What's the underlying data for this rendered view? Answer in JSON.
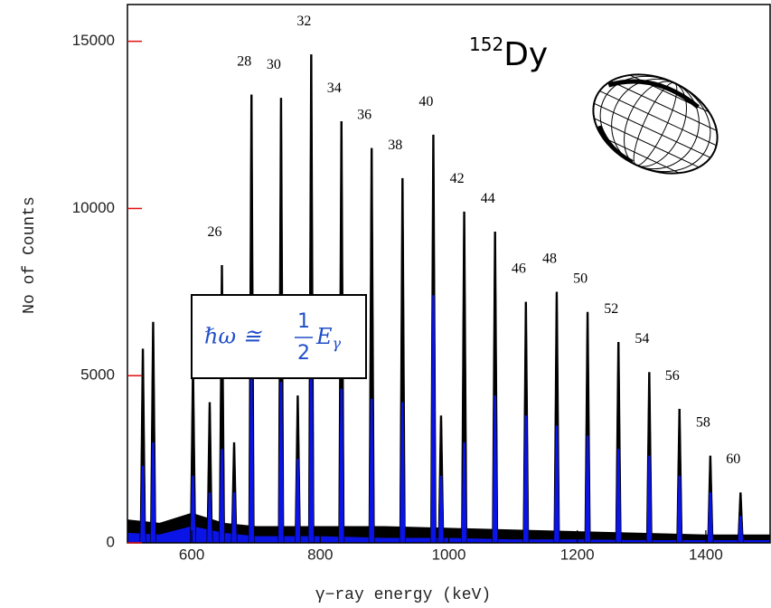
{
  "chart_data": {
    "type": "spectrum",
    "xlabel": "γ−ray energy (keV)",
    "ylabel": "No of Counts",
    "nucleus": {
      "mass": "152",
      "symbol": "Dy"
    },
    "formula": {
      "lhs": "ℏω ≅",
      "numerator": "1",
      "denominator": "2",
      "symbol": "E",
      "subscript": "γ"
    },
    "xlim": [
      500,
      1500
    ],
    "ylim": [
      0,
      16100
    ],
    "xticks": [
      600,
      800,
      1000,
      1200,
      1400
    ],
    "yticks": [
      0,
      5000,
      10000,
      15000
    ],
    "peaks": {
      "x": [
        524,
        540,
        602,
        628,
        647,
        666,
        693,
        739,
        765,
        786,
        833,
        880,
        928,
        976,
        988,
        1024,
        1072,
        1120,
        1168,
        1216,
        1264,
        1312,
        1359,
        1407,
        1454
      ],
      "labels": [
        null,
        null,
        null,
        null,
        "26",
        null,
        "28",
        "30",
        null,
        "32",
        "34",
        "36",
        "38",
        "40",
        null,
        "42",
        "44",
        "46",
        "48",
        "50",
        "52",
        "54",
        "56",
        "58",
        "60"
      ],
      "series": [
        {
          "color": "#000000",
          "values": [
            5800,
            6600,
            5300,
            4200,
            8300,
            3000,
            13400,
            13300,
            4400,
            14600,
            12600,
            11800,
            10900,
            12200,
            3800,
            9900,
            9300,
            7200,
            7500,
            6900,
            6000,
            5100,
            4000,
            2600,
            1500
          ]
        },
        {
          "color": "#0a14e6",
          "values": [
            2300,
            3000,
            2000,
            1500,
            2800,
            1500,
            5000,
            4800,
            2500,
            5200,
            4600,
            4300,
            4200,
            7400,
            2000,
            3000,
            4400,
            3800,
            3500,
            3200,
            2800,
            2600,
            2000,
            1500,
            800
          ]
        }
      ]
    },
    "background": {
      "x": [
        500,
        550,
        600,
        650,
        700,
        800,
        900,
        1000,
        1100,
        1200,
        1300,
        1400,
        1500
      ],
      "series": [
        {
          "color": "#000000",
          "values": [
            700,
            600,
            900,
            600,
            500,
            500,
            500,
            450,
            400,
            350,
            300,
            250,
            250
          ]
        },
        {
          "color": "#0a14e6",
          "values": [
            300,
            250,
            500,
            300,
            200,
            200,
            150,
            150,
            100,
            100,
            80,
            80,
            80
          ]
        }
      ]
    }
  }
}
